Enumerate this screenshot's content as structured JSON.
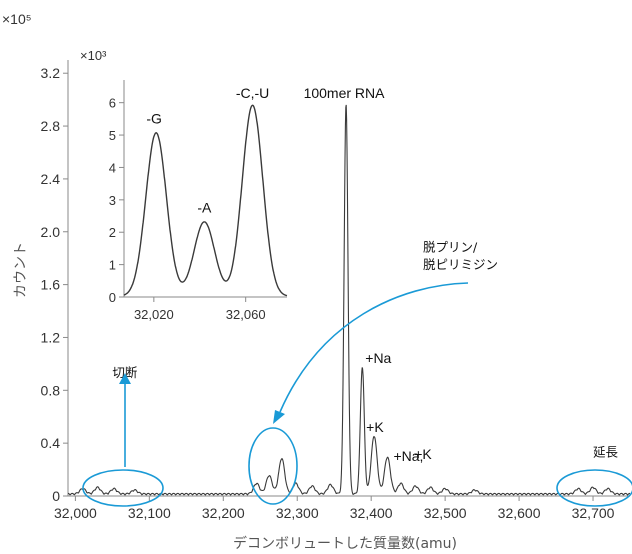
{
  "chart_data": [
    {
      "type": "line",
      "role": "main-spectrum",
      "title": "",
      "xlabel": "デコンボリュートした質量数(amu)",
      "ylabel": "カウント",
      "y_scale_label": "×10⁵",
      "xlim": [
        31990,
        32750
      ],
      "ylim": [
        0,
        3.3
      ],
      "x_ticks": [
        32000,
        32100,
        32200,
        32300,
        32400,
        32500,
        32600,
        32700
      ],
      "x_tick_labels": [
        "32,000",
        "32,100",
        "32,200",
        "32,300",
        "32,400",
        "32,500",
        "32,600",
        "32,700"
      ],
      "y_ticks": [
        0,
        0.4,
        0.8,
        1.2,
        1.6,
        2.0,
        2.4,
        2.8,
        3.2
      ],
      "y_tick_labels": [
        "0",
        "0.4",
        "0.8",
        "1.2",
        "1.6",
        "2.0",
        "2.4",
        "2.8",
        "3.2"
      ],
      "peaks": [
        {
          "x": 32010,
          "y": 0.04
        },
        {
          "x": 32030,
          "y": 0.05
        },
        {
          "x": 32052,
          "y": 0.04
        },
        {
          "x": 32080,
          "y": 0.03
        },
        {
          "x": 32245,
          "y": 0.08
        },
        {
          "x": 32262,
          "y": 0.14
        },
        {
          "x": 32279,
          "y": 0.27
        },
        {
          "x": 32298,
          "y": 0.08
        },
        {
          "x": 32320,
          "y": 0.06
        },
        {
          "x": 32345,
          "y": 0.07
        },
        {
          "x": 32366,
          "y": 2.95
        },
        {
          "x": 32388,
          "y": 0.96
        },
        {
          "x": 32404,
          "y": 0.44
        },
        {
          "x": 32422,
          "y": 0.28
        },
        {
          "x": 32440,
          "y": 0.08
        },
        {
          "x": 32460,
          "y": 0.06
        },
        {
          "x": 32480,
          "y": 0.05
        },
        {
          "x": 32500,
          "y": 0.04
        },
        {
          "x": 32540,
          "y": 0.03
        },
        {
          "x": 32680,
          "y": 0.04
        },
        {
          "x": 32700,
          "y": 0.05
        },
        {
          "x": 32720,
          "y": 0.04
        }
      ],
      "peak_labels": [
        {
          "text": "100mer RNA",
          "x": 32366,
          "y": 2.95
        },
        {
          "text": "+Na",
          "x": 32388,
          "y": 0.96
        },
        {
          "text": "+K",
          "x": 32404,
          "y": 0.44
        },
        {
          "text": "+Na,",
          "x": 32422,
          "y": 0.28
        },
        {
          "text": "+K",
          "x": 32470,
          "y": 0.28
        }
      ],
      "region_labels": [
        {
          "text": "切断",
          "x": 32050,
          "y": 0.9
        },
        {
          "text": "脱プリン/",
          "x": 32470,
          "y": 1.85
        },
        {
          "text": "脱ピリミジン",
          "x": 32470,
          "y": 1.72
        },
        {
          "text": "延長",
          "x": 32700,
          "y": 0.3
        }
      ]
    },
    {
      "type": "line",
      "role": "inset-spectrum",
      "title": "",
      "y_scale_label": "×10³",
      "xlim": [
        32007,
        32078
      ],
      "ylim": [
        0,
        6.7
      ],
      "x_ticks": [
        32020,
        32060
      ],
      "x_tick_labels": [
        "32,020",
        "32,060"
      ],
      "y_ticks": [
        0,
        1,
        2,
        3,
        4,
        5,
        6
      ],
      "y_tick_labels": [
        "0",
        "1",
        "2",
        "3",
        "4",
        "5",
        "6"
      ],
      "peaks": [
        {
          "x": 32021,
          "y": 5.05
        },
        {
          "x": 32042,
          "y": 2.3
        },
        {
          "x": 32063,
          "y": 5.9
        }
      ],
      "peak_labels": [
        {
          "text": "-G",
          "x": 32021,
          "y": 5.05
        },
        {
          "text": "-A",
          "x": 32042,
          "y": 2.3
        },
        {
          "text": "-C,-U",
          "x": 32063,
          "y": 5.9
        }
      ]
    }
  ],
  "colors": {
    "spectrum": "#3a3a3a",
    "axis": "#8a8a8a",
    "highlight": "#1a9ad6"
  }
}
